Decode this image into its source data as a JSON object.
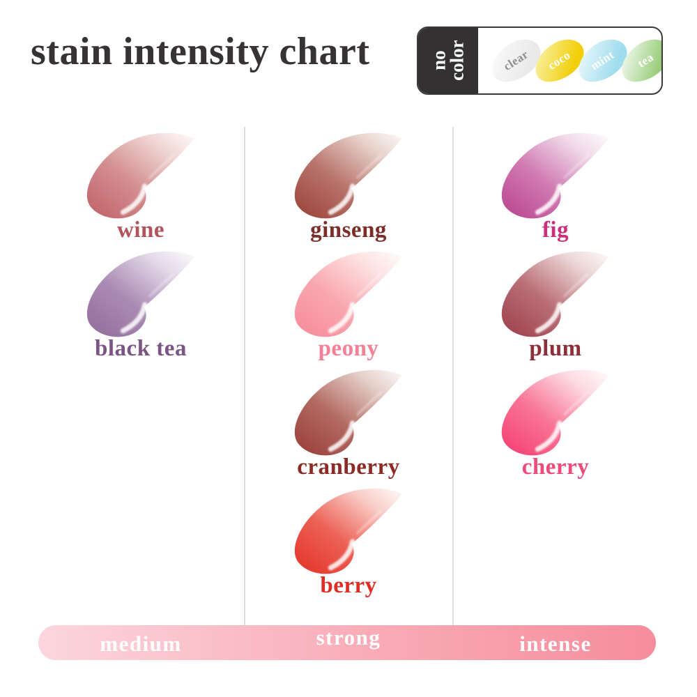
{
  "title": "stain intensity chart",
  "no_color_badge": {
    "label": "no color",
    "swatches": [
      {
        "name": "clear",
        "color": "#e9e9e9",
        "light": "#f8f8f8",
        "text_color": "#8f8f8f"
      },
      {
        "name": "coco",
        "color": "#f2cf0a",
        "light": "#f9ee9a",
        "text_color": "#ffffff"
      },
      {
        "name": "mint",
        "color": "#9fdcee",
        "light": "#e3f6fa",
        "text_color": "#ffffff"
      },
      {
        "name": "tea",
        "color": "#97cd77",
        "light": "#eaf5e6",
        "text_color": "#ffffff"
      }
    ]
  },
  "columns": [
    {
      "intensity": "medium",
      "shades": [
        {
          "name": "wine",
          "label_color": "#b2545c",
          "dark": "#c3696f",
          "main": "#d38e90",
          "light": "#f0d8d6"
        },
        {
          "name": "black tea",
          "label_color": "#7b5583",
          "dark": "#96729f",
          "main": "#ab8bb3",
          "light": "#e5dbea"
        }
      ]
    },
    {
      "intensity": "strong",
      "shades": [
        {
          "name": "ginseng",
          "label_color": "#7c2d27",
          "dark": "#a04a41",
          "main": "#b7736b",
          "light": "#e8d2cb"
        },
        {
          "name": "peony",
          "label_color": "#f57f95",
          "dark": "#f78f9d",
          "main": "#f9a8b0",
          "light": "#fde4e4"
        },
        {
          "name": "cranberry",
          "label_color": "#8c2b25",
          "dark": "#9d453e",
          "main": "#b26a62",
          "light": "#e5cfc9"
        },
        {
          "name": "berry",
          "label_color": "#df2d26",
          "dark": "#e53a30",
          "main": "#ec6156",
          "light": "#f9d0ca"
        }
      ]
    },
    {
      "intensity": "intense",
      "shades": [
        {
          "name": "fig",
          "label_color": "#cc2e7c",
          "dark": "#bd4d94",
          "main": "#d07ab2",
          "light": "#f1dcea"
        },
        {
          "name": "plum",
          "label_color": "#8d2f39",
          "dark": "#a24752",
          "main": "#b96e76",
          "light": "#ecd6d6"
        },
        {
          "name": "cherry",
          "label_color": "#f04a7d",
          "dark": "#f54876",
          "main": "#f87495",
          "light": "#fddbe3"
        }
      ]
    }
  ],
  "intensity_bar": {
    "labels": [
      "medium",
      "strong",
      "intense"
    ],
    "gradient_from": "#fcd6dd",
    "gradient_mid": "#f9abb7",
    "gradient_to": "#f68d9c"
  }
}
